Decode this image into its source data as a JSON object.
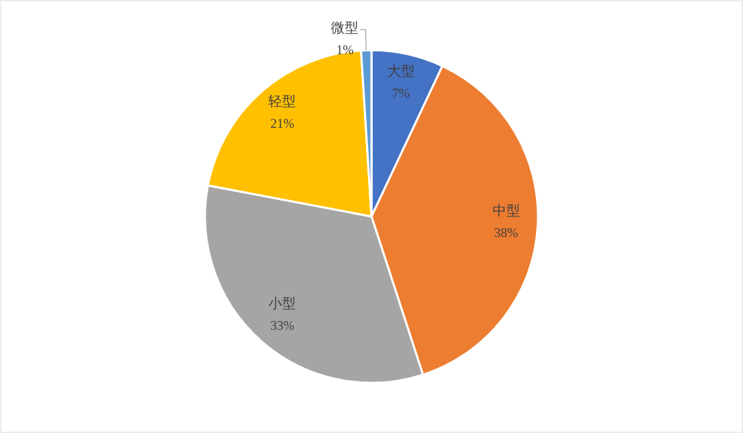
{
  "chart_data": {
    "type": "pie",
    "categories": [
      "大型",
      "中型",
      "小型",
      "轻型",
      "微型"
    ],
    "values": [
      7,
      38,
      33,
      21,
      1
    ],
    "value_labels": [
      "7%",
      "38%",
      "33%",
      "21%",
      "1%"
    ],
    "colors": [
      "#4472c4",
      "#ed7d31",
      "#a5a5a5",
      "#ffc000",
      "#5b9bd5"
    ]
  }
}
